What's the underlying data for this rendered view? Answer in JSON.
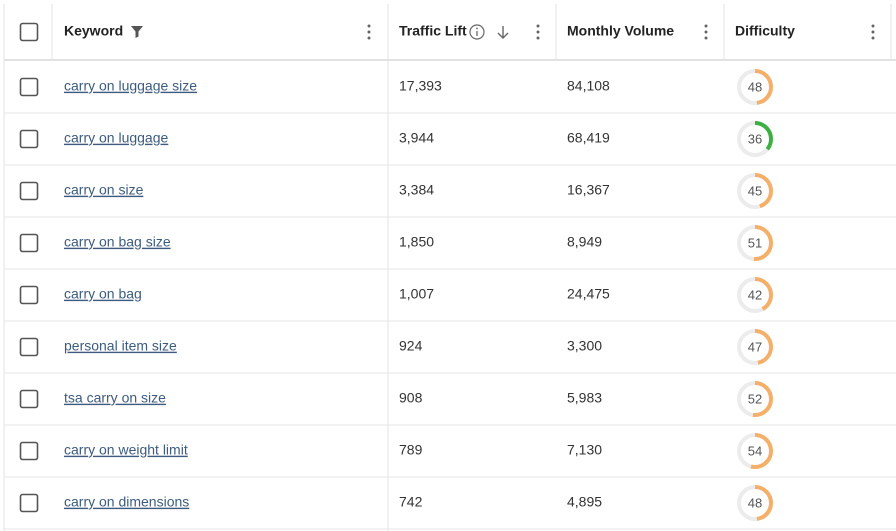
{
  "table": {
    "headers": [
      "Keyword",
      "Traffic Lift",
      "Monthly Volume",
      "Difficulty"
    ],
    "rows": [
      [
        "carry on luggage size",
        "17,393",
        "84,108",
        48
      ],
      [
        "carry on luggage",
        "3,944",
        "68,419",
        36
      ],
      [
        "carry on size",
        "3,384",
        "16,367",
        45
      ],
      [
        "carry on bag size",
        "1,850",
        "8,949",
        51
      ],
      [
        "carry on bag",
        "1,007",
        "24,475",
        42
      ],
      [
        "personal item size",
        "924",
        "3,300",
        47
      ],
      [
        "tsa carry on size",
        "908",
        "5,983",
        52
      ],
      [
        "carry on weight limit",
        "789",
        "7,130",
        54
      ],
      [
        "carry on dimensions",
        "742",
        "4,895",
        48
      ]
    ]
  }
}
